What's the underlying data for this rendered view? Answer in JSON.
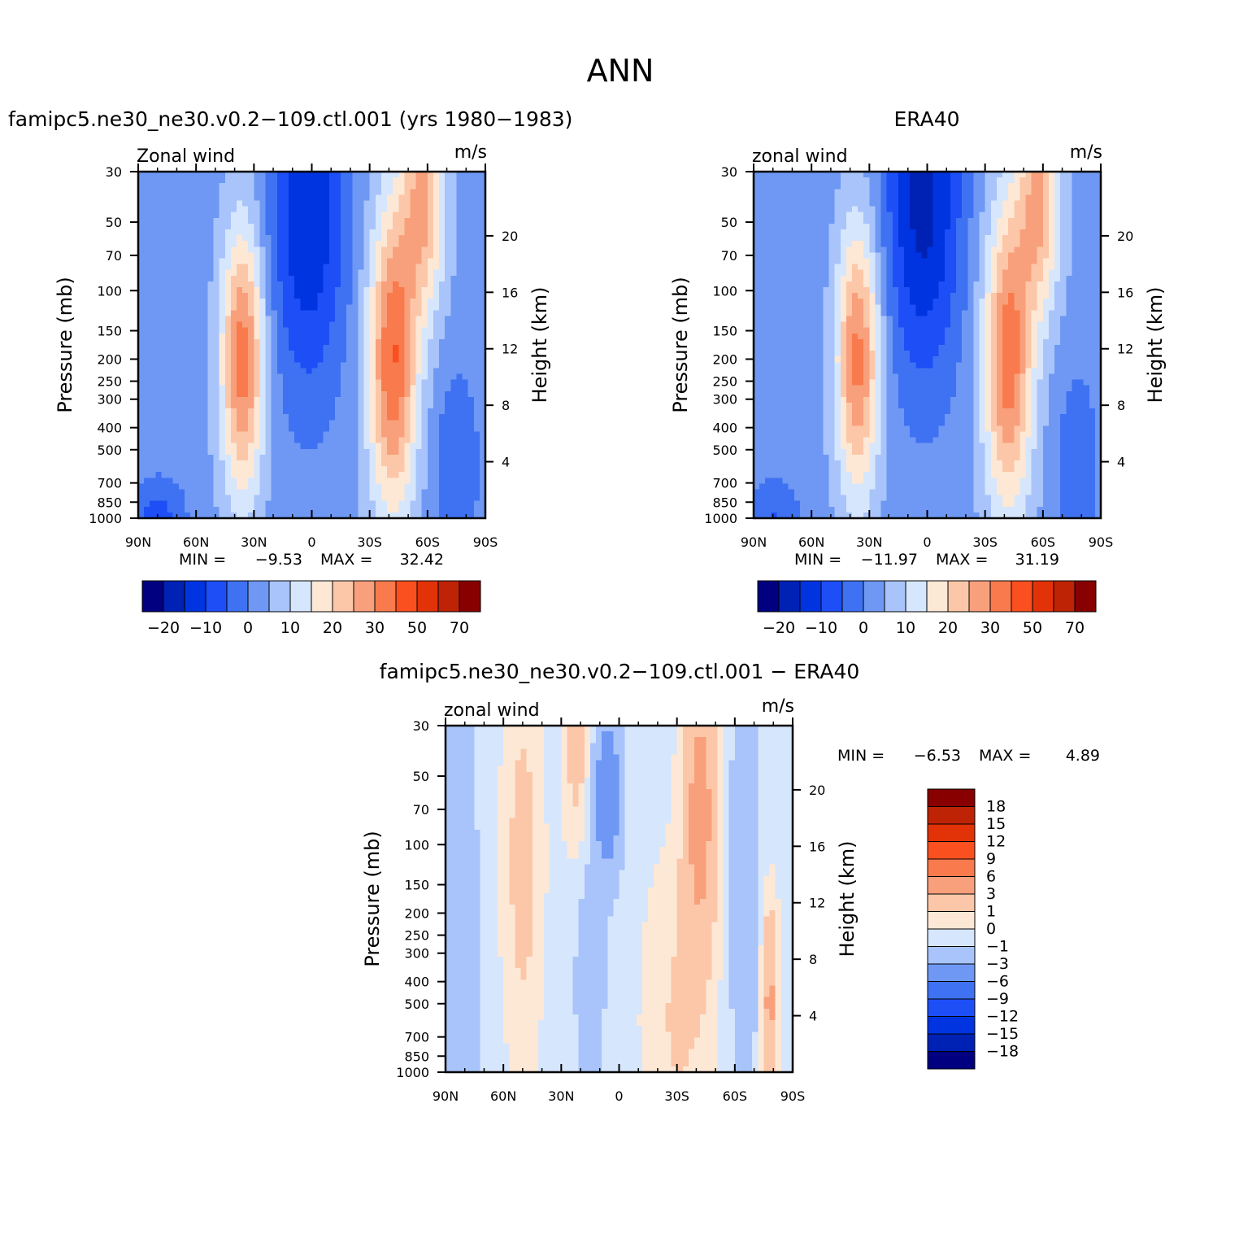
{
  "title": "ANN",
  "colors": {
    "main": [
      "#000080",
      "#0022b4",
      "#0034e0",
      "#1d4ef6",
      "#3f72f2",
      "#6e98f4",
      "#a8c4fa",
      "#d6e6fc",
      "#fde8d6",
      "#fcc7a8",
      "#f8a07c",
      "#f97a4c",
      "#fa5020",
      "#e23208",
      "#be2305",
      "#880000"
    ],
    "diff": [
      "#000080",
      "#0022b4",
      "#0034e0",
      "#1d4ef6",
      "#3f72f2",
      "#6e98f4",
      "#a8c4fa",
      "#d6e6fc",
      "#fde8d6",
      "#fcc7a8",
      "#f8a07c",
      "#f97a4c",
      "#fa5020",
      "#e23208",
      "#be2305",
      "#880000"
    ]
  },
  "chart_data": [
    {
      "type": "heatmap",
      "id": "model",
      "title": "famipc5.ne30_ne30.v0.2−109.ctl.001 (yrs 1980−1983)",
      "left_label": "Zonal wind",
      "units": "m/s",
      "ylabel": "Pressure (mb)",
      "y2label": "Height (km)",
      "x_ticks": [
        "90N",
        "60N",
        "30N",
        "0",
        "30S",
        "60S",
        "90S"
      ],
      "y_ticks": [
        "30",
        "50",
        "70",
        "100",
        "150",
        "200",
        "250",
        "300",
        "400",
        "500",
        "700",
        "850",
        "1000"
      ],
      "y2_ticks": [
        "20",
        "16",
        "12",
        "8",
        "4"
      ],
      "stats": {
        "min_label": "MIN =",
        "min": "−9.53",
        "max_label": "MAX =",
        "max": "32.42"
      },
      "colorbar_labels": [
        "−20",
        "−10",
        "0",
        "10",
        "20",
        "30",
        "50",
        "70"
      ],
      "levels": [
        -25,
        -20,
        -15,
        -10,
        -5,
        0,
        5,
        10,
        15,
        20,
        25,
        30,
        40,
        50,
        60,
        70
      ],
      "field": {
        "streams": [
          {
            "lat": 80,
            "p": 1000,
            "amp": -10,
            "slat": 10,
            "slogp": 0.12
          },
          {
            "lat": 75,
            "p": 60,
            "amp": -2,
            "slat": 15,
            "slogp": 0.5
          },
          {
            "lat": 36,
            "p": 200,
            "amp": 30,
            "slat": 8,
            "slogp": 0.42
          },
          {
            "lat": 2,
            "p": 45,
            "amp": -18,
            "slat": 14,
            "slogp": 0.55
          },
          {
            "lat": -42,
            "p": 200,
            "amp": 32,
            "slat": 9,
            "slogp": 0.48
          },
          {
            "lat": -58,
            "p": 40,
            "amp": 22,
            "slat": 8,
            "slogp": 0.35
          },
          {
            "lat": -75,
            "p": 600,
            "amp": -8,
            "slat": 8,
            "slogp": 0.3
          }
        ],
        "base": -2
      }
    },
    {
      "type": "heatmap",
      "id": "obs",
      "title": "ERA40",
      "left_label": "zonal wind",
      "units": "m/s",
      "ylabel": "Pressure (mb)",
      "y2label": "Height (km)",
      "x_ticks": [
        "90N",
        "60N",
        "30N",
        "0",
        "30S",
        "60S",
        "90S"
      ],
      "y_ticks": [
        "30",
        "50",
        "70",
        "100",
        "150",
        "200",
        "250",
        "300",
        "400",
        "500",
        "700",
        "850",
        "1000"
      ],
      "y2_ticks": [
        "20",
        "16",
        "12",
        "8",
        "4"
      ],
      "stats": {
        "min_label": "MIN =",
        "min": "−11.97",
        "max_label": "MAX =",
        "max": "31.19"
      },
      "colorbar_labels": [
        "−20",
        "−10",
        "0",
        "10",
        "20",
        "30",
        "50",
        "70"
      ],
      "levels": [
        -25,
        -20,
        -15,
        -10,
        -5,
        0,
        5,
        10,
        15,
        20,
        25,
        30,
        40,
        50,
        60,
        70
      ],
      "field": {
        "streams": [
          {
            "lat": 80,
            "p": 1000,
            "amp": -8,
            "slat": 10,
            "slogp": 0.12
          },
          {
            "lat": 75,
            "p": 60,
            "amp": -2,
            "slat": 15,
            "slogp": 0.5
          },
          {
            "lat": 36,
            "p": 200,
            "amp": 29,
            "slat": 8,
            "slogp": 0.42
          },
          {
            "lat": 2,
            "p": 40,
            "amp": -20,
            "slat": 14,
            "slogp": 0.55
          },
          {
            "lat": -42,
            "p": 200,
            "amp": 30,
            "slat": 9,
            "slogp": 0.48
          },
          {
            "lat": -58,
            "p": 40,
            "amp": 22,
            "slat": 8,
            "slogp": 0.35
          },
          {
            "lat": -78,
            "p": 600,
            "amp": -7,
            "slat": 8,
            "slogp": 0.3
          }
        ],
        "base": -2
      }
    },
    {
      "type": "heatmap",
      "id": "diff",
      "title": "famipc5.ne30_ne30.v0.2−109.ctl.001 − ERA40",
      "left_label": "zonal wind",
      "units": "m/s",
      "ylabel": "Pressure (mb)",
      "y2label": "Height (km)",
      "x_ticks": [
        "90N",
        "60N",
        "30N",
        "0",
        "30S",
        "60S",
        "90S"
      ],
      "y_ticks": [
        "30",
        "50",
        "70",
        "100",
        "150",
        "200",
        "250",
        "300",
        "400",
        "500",
        "700",
        "850",
        "1000"
      ],
      "y2_ticks": [
        "20",
        "16",
        "12",
        "8",
        "4"
      ],
      "stats": {
        "min_label": "MIN =",
        "min": "−6.53",
        "max_label": "MAX =",
        "max": "4.89"
      },
      "colorbar_labels": [
        "18",
        "15",
        "12",
        "9",
        "6",
        "3",
        "1",
        "0",
        "−1",
        "−3",
        "−6",
        "−9",
        "−12",
        "−15",
        "−18"
      ],
      "levels": [
        -18,
        -15,
        -12,
        -9,
        -6,
        -3,
        -1,
        0,
        1,
        3,
        6,
        9,
        12,
        15,
        18
      ],
      "field": {
        "streams": [
          {
            "lat": 82,
            "p": 300,
            "amp": -2,
            "slat": 6,
            "slogp": 0.9
          },
          {
            "lat": 50,
            "p": 120,
            "amp": 2,
            "slat": 7,
            "slogp": 0.6
          },
          {
            "lat": 22,
            "p": 40,
            "amp": 2,
            "slat": 5,
            "slogp": 0.3
          },
          {
            "lat": 6,
            "p": 60,
            "amp": -5,
            "slat": 5,
            "slogp": 0.25
          },
          {
            "lat": 15,
            "p": 400,
            "amp": -2,
            "slat": 5,
            "slogp": 0.35
          },
          {
            "lat": -42,
            "p": 70,
            "amp": 4.5,
            "slat": 6,
            "slogp": 0.45
          },
          {
            "lat": -30,
            "p": 600,
            "amp": 1.5,
            "slat": 12,
            "slogp": 0.5
          },
          {
            "lat": -65,
            "p": 150,
            "amp": -2.5,
            "slat": 5,
            "slogp": 0.6
          },
          {
            "lat": -78,
            "p": 500,
            "amp": 4,
            "slat": 3,
            "slogp": 0.3
          }
        ],
        "base": -0.4
      }
    }
  ]
}
